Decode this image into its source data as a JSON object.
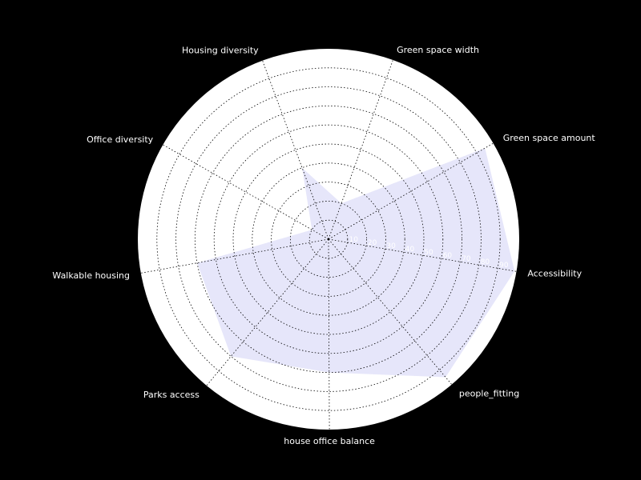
{
  "chart_data": {
    "type": "radar",
    "categories": [
      "Accessibility",
      "Green space amount",
      "Green space width",
      "Housing diversity",
      "Office diversity",
      "Walkable housing",
      "Parks access",
      "house office balance",
      "people_fitting"
    ],
    "series": [
      {
        "values": [
          99,
          95,
          20,
          40,
          10,
          70,
          80,
          70,
          95
        ]
      }
    ],
    "rlim": [
      0,
      100
    ],
    "rticks": [
      10,
      20,
      30,
      40,
      50,
      60,
      70,
      80,
      90
    ],
    "rtick_labels": [
      "10",
      "20",
      "30",
      "40",
      "50",
      "60",
      "70",
      "80",
      "90"
    ],
    "grid": true,
    "legend": "none",
    "colors": {
      "background": "#000000",
      "plot_area": "#ffffff",
      "fill": "#e6e6fa",
      "text": "#ffffff",
      "grid": "#000000"
    }
  }
}
